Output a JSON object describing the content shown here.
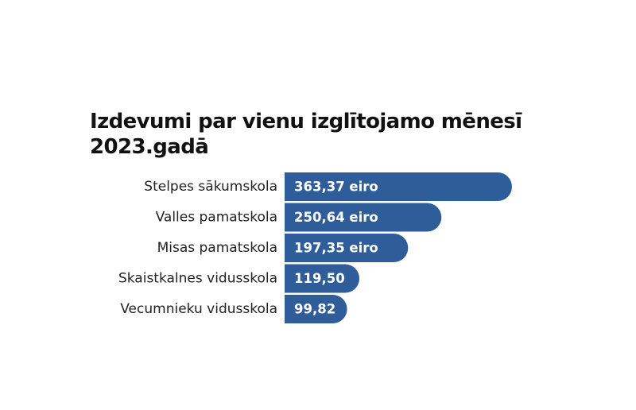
{
  "chart_data": {
    "type": "bar",
    "orientation": "horizontal",
    "title_lines": [
      "Izdevumi par vienu izglītojamo mēnesī",
      "2023.gadā"
    ],
    "categories": [
      "Stelpes sākumskola",
      "Valles pamatskola",
      "Misas pamatskola",
      "Skaistkalnes vidusskola",
      "Vecumnieku vidusskola"
    ],
    "values": [
      363.37,
      250.64,
      197.35,
      119.5,
      99.82
    ],
    "value_labels": [
      "363,37 eiro",
      "250,64 eiro",
      "197,35 eiro",
      "119,50",
      "99,82"
    ],
    "bar_color": "#2f5d99",
    "grid": false,
    "legend": "none"
  }
}
